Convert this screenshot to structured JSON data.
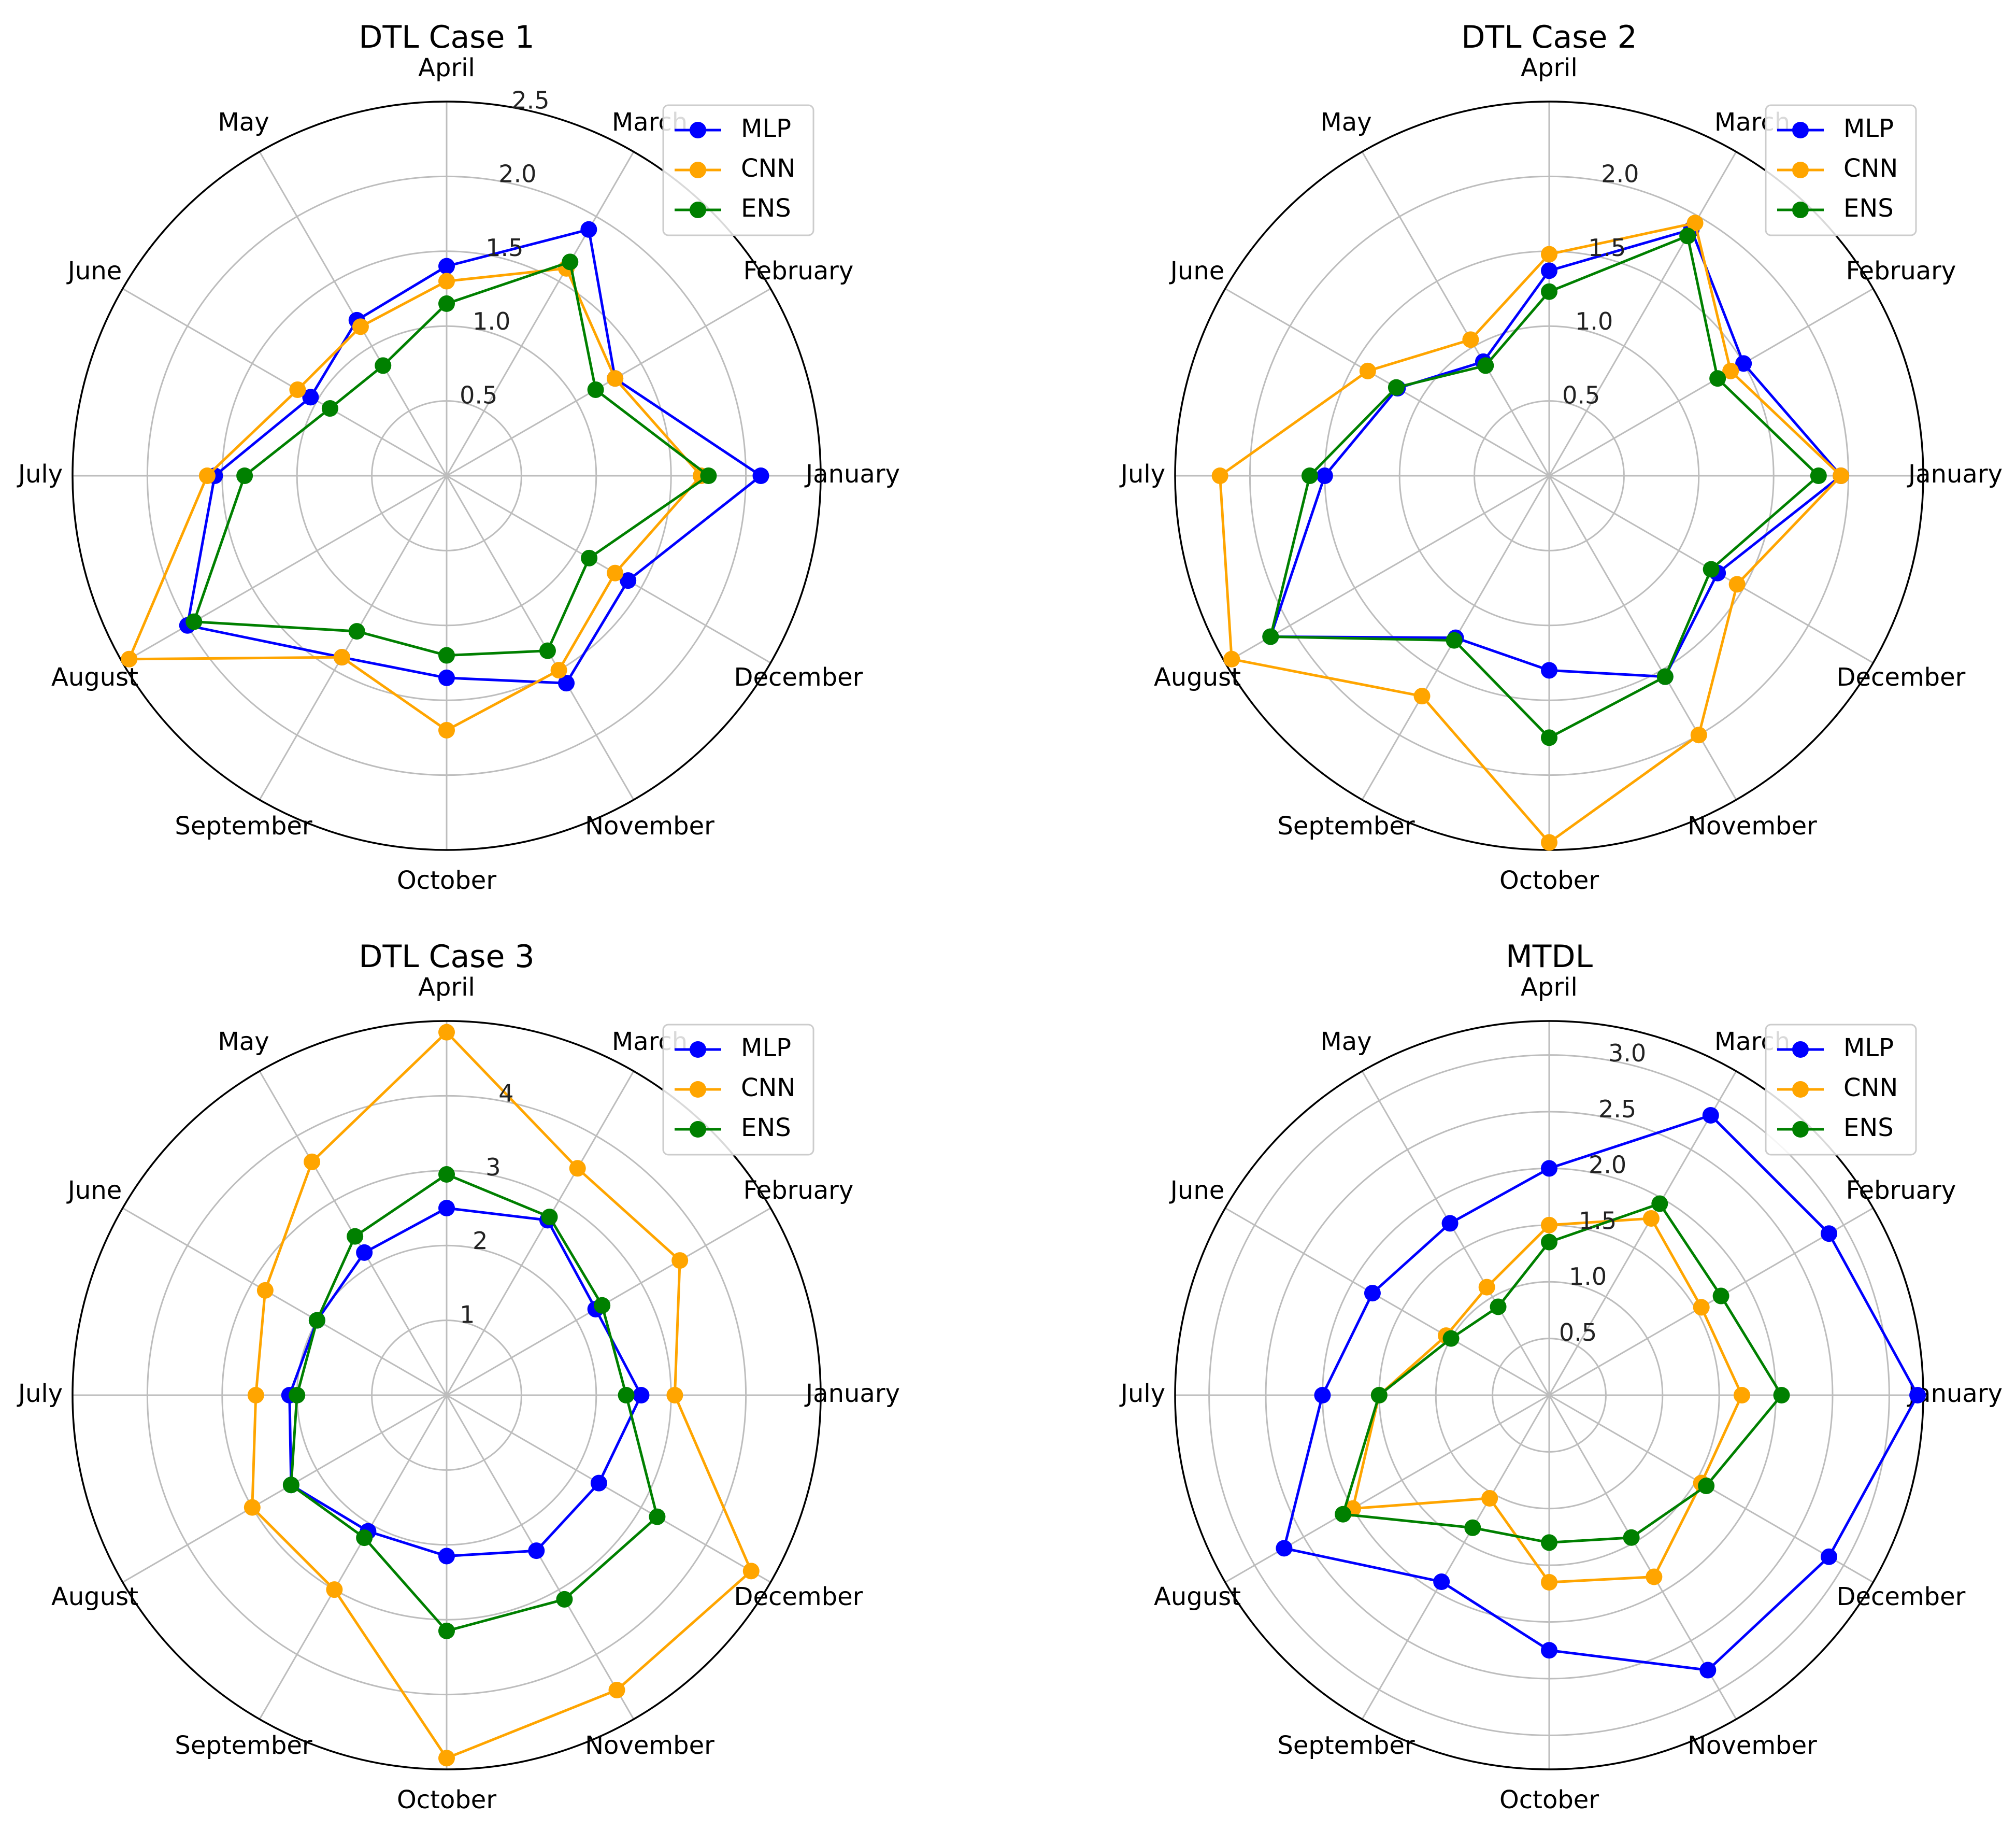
{
  "chart_data": [
    {
      "type": "radar",
      "title": "DTL Case 1",
      "categories": [
        "January",
        "February",
        "March",
        "April",
        "May",
        "June",
        "July",
        "August",
        "September",
        "October",
        "November",
        "December"
      ],
      "rlim": [
        0,
        2.5
      ],
      "rticks": [
        0.5,
        1.0,
        1.5,
        2.0,
        2.5
      ],
      "rtick_labels": [
        "0.5",
        "1.0",
        "1.5",
        "2.0",
        "2.5"
      ],
      "grid": true,
      "legend_position": "upper-right",
      "series": [
        {
          "name": "MLP",
          "color": "#0000ff",
          "values": [
            2.1,
            1.3,
            1.9,
            1.4,
            1.2,
            1.05,
            1.55,
            2.0,
            1.4,
            1.35,
            1.6,
            1.4
          ]
        },
        {
          "name": "CNN",
          "color": "#ffa500",
          "values": [
            1.7,
            1.3,
            1.6,
            1.3,
            1.15,
            1.15,
            1.6,
            2.45,
            1.4,
            1.7,
            1.5,
            1.3
          ]
        },
        {
          "name": "ENS",
          "color": "#008000",
          "values": [
            1.75,
            1.15,
            1.65,
            1.15,
            0.85,
            0.9,
            1.35,
            1.95,
            1.2,
            1.2,
            1.35,
            1.1
          ]
        }
      ]
    },
    {
      "type": "radar",
      "title": "DTL Case 2",
      "categories": [
        "January",
        "February",
        "March",
        "April",
        "May",
        "June",
        "July",
        "August",
        "September",
        "October",
        "November",
        "December"
      ],
      "rlim": [
        0,
        2.5
      ],
      "rticks": [
        0.5,
        1.0,
        1.5,
        2.0
      ],
      "rtick_labels": [
        "0.5",
        "1.0",
        "1.5",
        "2.0"
      ],
      "grid": true,
      "legend_position": "upper-right",
      "series": [
        {
          "name": "MLP",
          "color": "#0000ff",
          "values": [
            1.95,
            1.5,
            1.9,
            1.37,
            0.88,
            1.17,
            1.5,
            2.15,
            1.25,
            1.3,
            1.55,
            1.3
          ]
        },
        {
          "name": "CNN",
          "color": "#ffa500",
          "values": [
            1.95,
            1.4,
            1.95,
            1.48,
            1.05,
            1.4,
            2.2,
            2.45,
            1.7,
            2.45,
            2.0,
            1.45
          ]
        },
        {
          "name": "ENS",
          "color": "#008000",
          "values": [
            1.8,
            1.3,
            1.85,
            1.23,
            0.85,
            1.18,
            1.6,
            2.15,
            1.27,
            1.75,
            1.55,
            1.25
          ]
        }
      ]
    },
    {
      "type": "radar",
      "title": "DTL Case 3",
      "categories": [
        "January",
        "February",
        "March",
        "April",
        "May",
        "June",
        "July",
        "August",
        "September",
        "October",
        "November",
        "December"
      ],
      "rlim": [
        0,
        5
      ],
      "rticks": [
        1,
        2,
        3,
        4,
        5
      ],
      "rtick_labels": [
        "1",
        "2",
        "3",
        "4",
        ""
      ],
      "grid": true,
      "legend_position": "upper-right",
      "series": [
        {
          "name": "MLP",
          "color": "#0000ff",
          "values": [
            2.6,
            2.3,
            2.7,
            2.5,
            2.2,
            2.0,
            2.1,
            2.4,
            2.1,
            2.15,
            2.4,
            2.35
          ]
        },
        {
          "name": "CNN",
          "color": "#ffa500",
          "values": [
            3.05,
            3.6,
            3.5,
            4.85,
            3.6,
            2.8,
            2.55,
            3.0,
            3.0,
            4.85,
            4.55,
            4.7
          ]
        },
        {
          "name": "ENS",
          "color": "#008000",
          "values": [
            2.4,
            2.4,
            2.75,
            2.95,
            2.45,
            2.0,
            2.0,
            2.4,
            2.2,
            3.15,
            3.15,
            3.25
          ]
        }
      ]
    },
    {
      "type": "radar",
      "title": "MTDL",
      "categories": [
        "January",
        "February",
        "March",
        "April",
        "May",
        "June",
        "July",
        "August",
        "September",
        "October",
        "November",
        "December"
      ],
      "rlim": [
        0,
        3.3
      ],
      "rticks": [
        0.5,
        1.0,
        1.5,
        2.0,
        2.5,
        3.0
      ],
      "rtick_labels": [
        "0.5",
        "1.0",
        "1.5",
        "2.0",
        "2.5",
        "3.0"
      ],
      "grid": true,
      "legend_position": "upper-right",
      "series": [
        {
          "name": "MLP",
          "color": "#0000ff",
          "values": [
            3.25,
            2.85,
            2.85,
            2.0,
            1.75,
            1.8,
            2.0,
            2.7,
            1.9,
            2.25,
            2.8,
            2.85
          ]
        },
        {
          "name": "CNN",
          "color": "#ffa500",
          "values": [
            1.7,
            1.55,
            1.8,
            1.5,
            1.1,
            1.05,
            1.5,
            2.0,
            1.05,
            1.65,
            1.85,
            1.55
          ]
        },
        {
          "name": "ENS",
          "color": "#008000",
          "values": [
            2.05,
            1.75,
            1.95,
            1.35,
            0.9,
            1.0,
            1.5,
            2.1,
            1.35,
            1.3,
            1.45,
            1.6
          ]
        }
      ]
    }
  ]
}
